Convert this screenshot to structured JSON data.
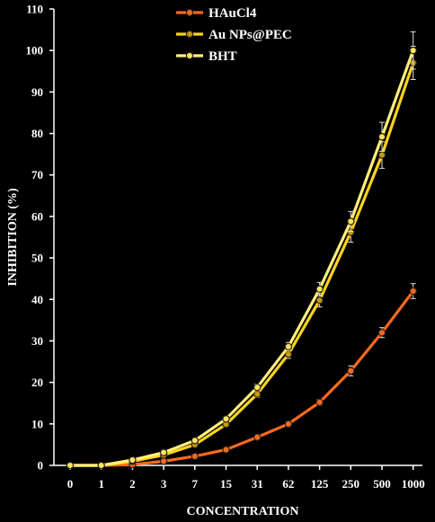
{
  "chart_data": {
    "type": "line",
    "title": "",
    "xlabel": "CONCENTRATION",
    "ylabel": "INHIBITION (%)",
    "categories": [
      "0",
      "1",
      "2",
      "3",
      "7",
      "15",
      "31",
      "62",
      "125",
      "250",
      "500",
      "1000"
    ],
    "yticks": [
      "0",
      "10",
      "20",
      "30",
      "40",
      "50",
      "60",
      "70",
      "80",
      "90",
      "100",
      "110"
    ],
    "ylim": [
      0,
      110
    ],
    "grid": false,
    "legend_position": "top-center",
    "background": "#000000",
    "axis_color": "#ffffff",
    "series": [
      {
        "name": "HAuCl4",
        "color": "#ff6a1a",
        "marker_fill": "#ff6a1a",
        "values": [
          0,
          0,
          0.2,
          1.0,
          2.2,
          3.8,
          6.8,
          10.0,
          15.2,
          22.8,
          32.0,
          42.0
        ],
        "errors": [
          0,
          0,
          0,
          0.2,
          0.3,
          0.4,
          0.5,
          0.6,
          0.7,
          1.2,
          1.2,
          1.8
        ]
      },
      {
        "name": "Au NPs@PEC",
        "color": "#ffd21c",
        "marker_fill": "#c99a00",
        "values": [
          0,
          0,
          1.0,
          2.5,
          5.0,
          9.9,
          17.2,
          26.8,
          39.8,
          56.2,
          74.8,
          97.0
        ],
        "errors": [
          0,
          0,
          0.2,
          0.3,
          0.4,
          0.6,
          0.8,
          1.0,
          1.6,
          2.4,
          3.2,
          4.0
        ]
      },
      {
        "name": "BHT",
        "color": "#fff07a",
        "marker_fill": "#ffe55a",
        "values": [
          0,
          0,
          1.3,
          3.1,
          6.0,
          11.2,
          18.8,
          28.6,
          42.5,
          58.8,
          79.2,
          100.0
        ],
        "errors": [
          0,
          0,
          0.2,
          0.3,
          0.4,
          0.6,
          0.8,
          1.0,
          1.6,
          2.4,
          3.5,
          4.5
        ]
      }
    ]
  }
}
